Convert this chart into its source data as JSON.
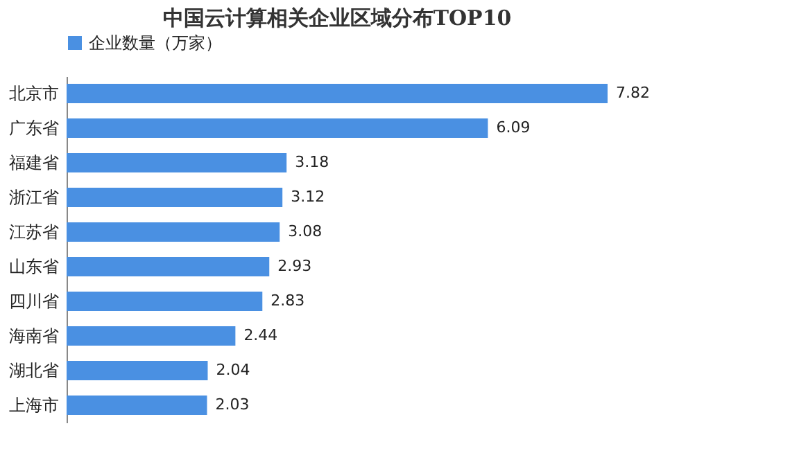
{
  "chart_data": {
    "type": "bar",
    "orientation": "horizontal",
    "title": "中国云计算相关企业区域分布TOP10",
    "categories": [
      "北京市",
      "广东省",
      "福建省",
      "浙江省",
      "江苏省",
      "山东省",
      "四川省",
      "海南省",
      "湖北省",
      "上海市"
    ],
    "series": [
      {
        "name": "企业数量（万家）",
        "color": "#4a90e2",
        "values": [
          7.82,
          6.09,
          3.18,
          3.12,
          3.08,
          2.93,
          2.83,
          2.44,
          2.04,
          2.03
        ]
      }
    ],
    "data_labels": true,
    "legend": "top"
  }
}
